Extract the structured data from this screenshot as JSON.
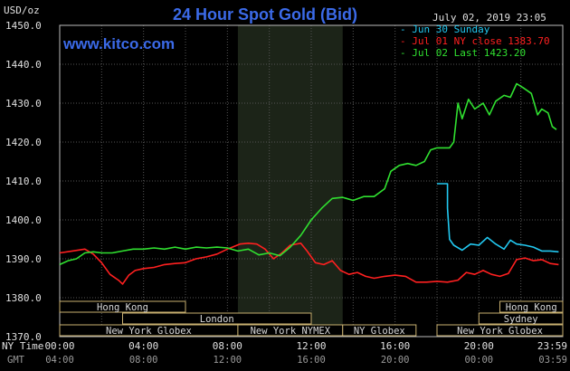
{
  "header": {
    "unit": "USD/oz",
    "title": "24 Hour Spot Gold (Bid)",
    "timestamp": "July 02, 2019 23:05",
    "site": "www.kitco.com"
  },
  "legend": [
    {
      "label": "Jun 30 Sunday",
      "color": "#22c8f0"
    },
    {
      "label": "Jul 01 NY close 1383.70",
      "color": "#ff2020"
    },
    {
      "label": "Jul 02 Last 1423.20",
      "color": "#30e030"
    }
  ],
  "time_rows": {
    "ny_label": "NY Time",
    "gmt_label": "GMT",
    "ny_ticks": [
      "00:00",
      "04:00",
      "08:00",
      "12:00",
      "16:00",
      "20:00",
      "23:59"
    ],
    "gmt_ticks": [
      "04:00",
      "08:00",
      "12:00",
      "16:00",
      "20:00",
      "00:00",
      "03:59"
    ]
  },
  "markets": [
    {
      "name": "Hong Kong",
      "row": 0,
      "start": 0,
      "end": 6
    },
    {
      "name": "London",
      "row": 1,
      "start": 3,
      "end": 12
    },
    {
      "name": "New York Globex",
      "row": 2,
      "start": 0,
      "end": 8.5
    },
    {
      "name": "New York NYMEX",
      "row": 2,
      "start": 8.5,
      "end": 13.5
    },
    {
      "name": "NY Globex",
      "row": 2,
      "start": 13.5,
      "end": 17
    },
    {
      "name": "Hong Kong",
      "row": 0,
      "start": 21,
      "end": 24
    },
    {
      "name": "Sydney",
      "row": 1,
      "start": 20,
      "end": 24
    },
    {
      "name": "New York Globex",
      "row": 2,
      "start": 18,
      "end": 24
    }
  ],
  "chart_data": {
    "type": "line",
    "x_unit": "hours (NY time)",
    "xlim": [
      0,
      24
    ],
    "ylim": [
      1370,
      1450
    ],
    "yticks": [
      1370,
      1380,
      1390,
      1400,
      1410,
      1420,
      1430,
      1440,
      1450
    ],
    "ytick_labels": [
      "1370.0",
      "1380.0",
      "1390.0",
      "1400.0",
      "1410.0",
      "1420.0",
      "1430.0",
      "1440.0",
      "1450.0"
    ],
    "grid": true,
    "shaded_session_hours": [
      8.5,
      13.5
    ],
    "series": [
      {
        "name": "Jun 30 Sunday",
        "color": "#22c8f0",
        "points": [
          [
            18.0,
            1409.3
          ],
          [
            18.5,
            1409.3
          ],
          [
            18.5,
            1403.0
          ],
          [
            18.6,
            1395.0
          ],
          [
            18.8,
            1393.5
          ],
          [
            19.2,
            1392.2
          ],
          [
            19.6,
            1393.8
          ],
          [
            20.0,
            1393.5
          ],
          [
            20.4,
            1395.5
          ],
          [
            20.8,
            1393.8
          ],
          [
            21.2,
            1392.5
          ],
          [
            21.5,
            1394.8
          ],
          [
            21.8,
            1393.8
          ],
          [
            22.2,
            1393.5
          ],
          [
            22.6,
            1393.0
          ],
          [
            23.0,
            1392.0
          ],
          [
            23.4,
            1392.0
          ],
          [
            23.8,
            1391.8
          ]
        ]
      },
      {
        "name": "Jul 01 NY close 1383.70",
        "color": "#ff2020",
        "points": [
          [
            0.0,
            1391.5
          ],
          [
            0.6,
            1392.0
          ],
          [
            1.2,
            1392.5
          ],
          [
            1.6,
            1391.2
          ],
          [
            2.0,
            1389.0
          ],
          [
            2.4,
            1386.0
          ],
          [
            2.8,
            1384.5
          ],
          [
            3.0,
            1383.5
          ],
          [
            3.3,
            1385.8
          ],
          [
            3.6,
            1387.0
          ],
          [
            4.0,
            1387.5
          ],
          [
            4.5,
            1387.8
          ],
          [
            5.0,
            1388.5
          ],
          [
            5.5,
            1388.8
          ],
          [
            6.0,
            1389.0
          ],
          [
            6.5,
            1390.0
          ],
          [
            7.0,
            1390.5
          ],
          [
            7.5,
            1391.2
          ],
          [
            8.0,
            1392.5
          ],
          [
            8.6,
            1393.8
          ],
          [
            9.0,
            1394.0
          ],
          [
            9.4,
            1393.8
          ],
          [
            9.8,
            1392.5
          ],
          [
            10.2,
            1390.0
          ],
          [
            10.6,
            1391.5
          ],
          [
            11.0,
            1393.5
          ],
          [
            11.5,
            1394.0
          ],
          [
            11.8,
            1392.0
          ],
          [
            12.2,
            1389.0
          ],
          [
            12.6,
            1388.5
          ],
          [
            13.0,
            1389.5
          ],
          [
            13.4,
            1387.0
          ],
          [
            13.8,
            1386.0
          ],
          [
            14.2,
            1386.5
          ],
          [
            14.6,
            1385.5
          ],
          [
            15.0,
            1385.0
          ],
          [
            15.5,
            1385.5
          ],
          [
            16.0,
            1385.8
          ],
          [
            16.5,
            1385.5
          ],
          [
            17.0,
            1384.0
          ],
          [
            17.5,
            1384.0
          ],
          [
            18.0,
            1384.2
          ],
          [
            18.5,
            1384.0
          ],
          [
            19.0,
            1384.5
          ],
          [
            19.4,
            1386.5
          ],
          [
            19.8,
            1386.0
          ],
          [
            20.2,
            1387.0
          ],
          [
            20.6,
            1386.0
          ],
          [
            21.0,
            1385.5
          ],
          [
            21.4,
            1386.2
          ],
          [
            21.8,
            1389.8
          ],
          [
            22.2,
            1390.2
          ],
          [
            22.6,
            1389.5
          ],
          [
            23.0,
            1389.8
          ],
          [
            23.4,
            1388.8
          ],
          [
            23.8,
            1388.5
          ]
        ]
      },
      {
        "name": "Jul 02 Last 1423.20",
        "color": "#30e030",
        "points": [
          [
            0.0,
            1388.5
          ],
          [
            0.4,
            1389.5
          ],
          [
            0.8,
            1390.0
          ],
          [
            1.2,
            1391.5
          ],
          [
            1.6,
            1391.8
          ],
          [
            2.0,
            1391.5
          ],
          [
            2.5,
            1391.5
          ],
          [
            3.0,
            1392.0
          ],
          [
            3.5,
            1392.5
          ],
          [
            4.0,
            1392.5
          ],
          [
            4.5,
            1392.8
          ],
          [
            5.0,
            1392.5
          ],
          [
            5.5,
            1393.0
          ],
          [
            6.0,
            1392.5
          ],
          [
            6.5,
            1393.0
          ],
          [
            7.0,
            1392.8
          ],
          [
            7.5,
            1393.0
          ],
          [
            8.0,
            1392.8
          ],
          [
            8.5,
            1392.0
          ],
          [
            9.0,
            1392.5
          ],
          [
            9.5,
            1391.0
          ],
          [
            10.0,
            1391.5
          ],
          [
            10.5,
            1390.8
          ],
          [
            11.0,
            1393.0
          ],
          [
            11.5,
            1396.0
          ],
          [
            12.0,
            1400.0
          ],
          [
            12.5,
            1403.0
          ],
          [
            13.0,
            1405.5
          ],
          [
            13.5,
            1405.8
          ],
          [
            14.0,
            1405.0
          ],
          [
            14.5,
            1406.0
          ],
          [
            15.0,
            1406.0
          ],
          [
            15.5,
            1408.0
          ],
          [
            15.8,
            1412.5
          ],
          [
            16.2,
            1414.0
          ],
          [
            16.6,
            1414.5
          ],
          [
            17.0,
            1414.0
          ],
          [
            17.4,
            1415.0
          ],
          [
            17.7,
            1418.0
          ],
          [
            18.0,
            1418.5
          ],
          [
            18.6,
            1418.5
          ],
          [
            18.8,
            1420.0
          ],
          [
            19.0,
            1430.0
          ],
          [
            19.2,
            1426.0
          ],
          [
            19.5,
            1431.0
          ],
          [
            19.8,
            1428.5
          ],
          [
            20.2,
            1430.0
          ],
          [
            20.5,
            1427.0
          ],
          [
            20.8,
            1430.5
          ],
          [
            21.2,
            1432.0
          ],
          [
            21.5,
            1431.5
          ],
          [
            21.8,
            1435.0
          ],
          [
            22.1,
            1434.0
          ],
          [
            22.5,
            1432.5
          ],
          [
            22.8,
            1427.0
          ],
          [
            23.0,
            1428.5
          ],
          [
            23.3,
            1427.5
          ],
          [
            23.5,
            1424.0
          ],
          [
            23.7,
            1423.2
          ]
        ]
      }
    ]
  }
}
